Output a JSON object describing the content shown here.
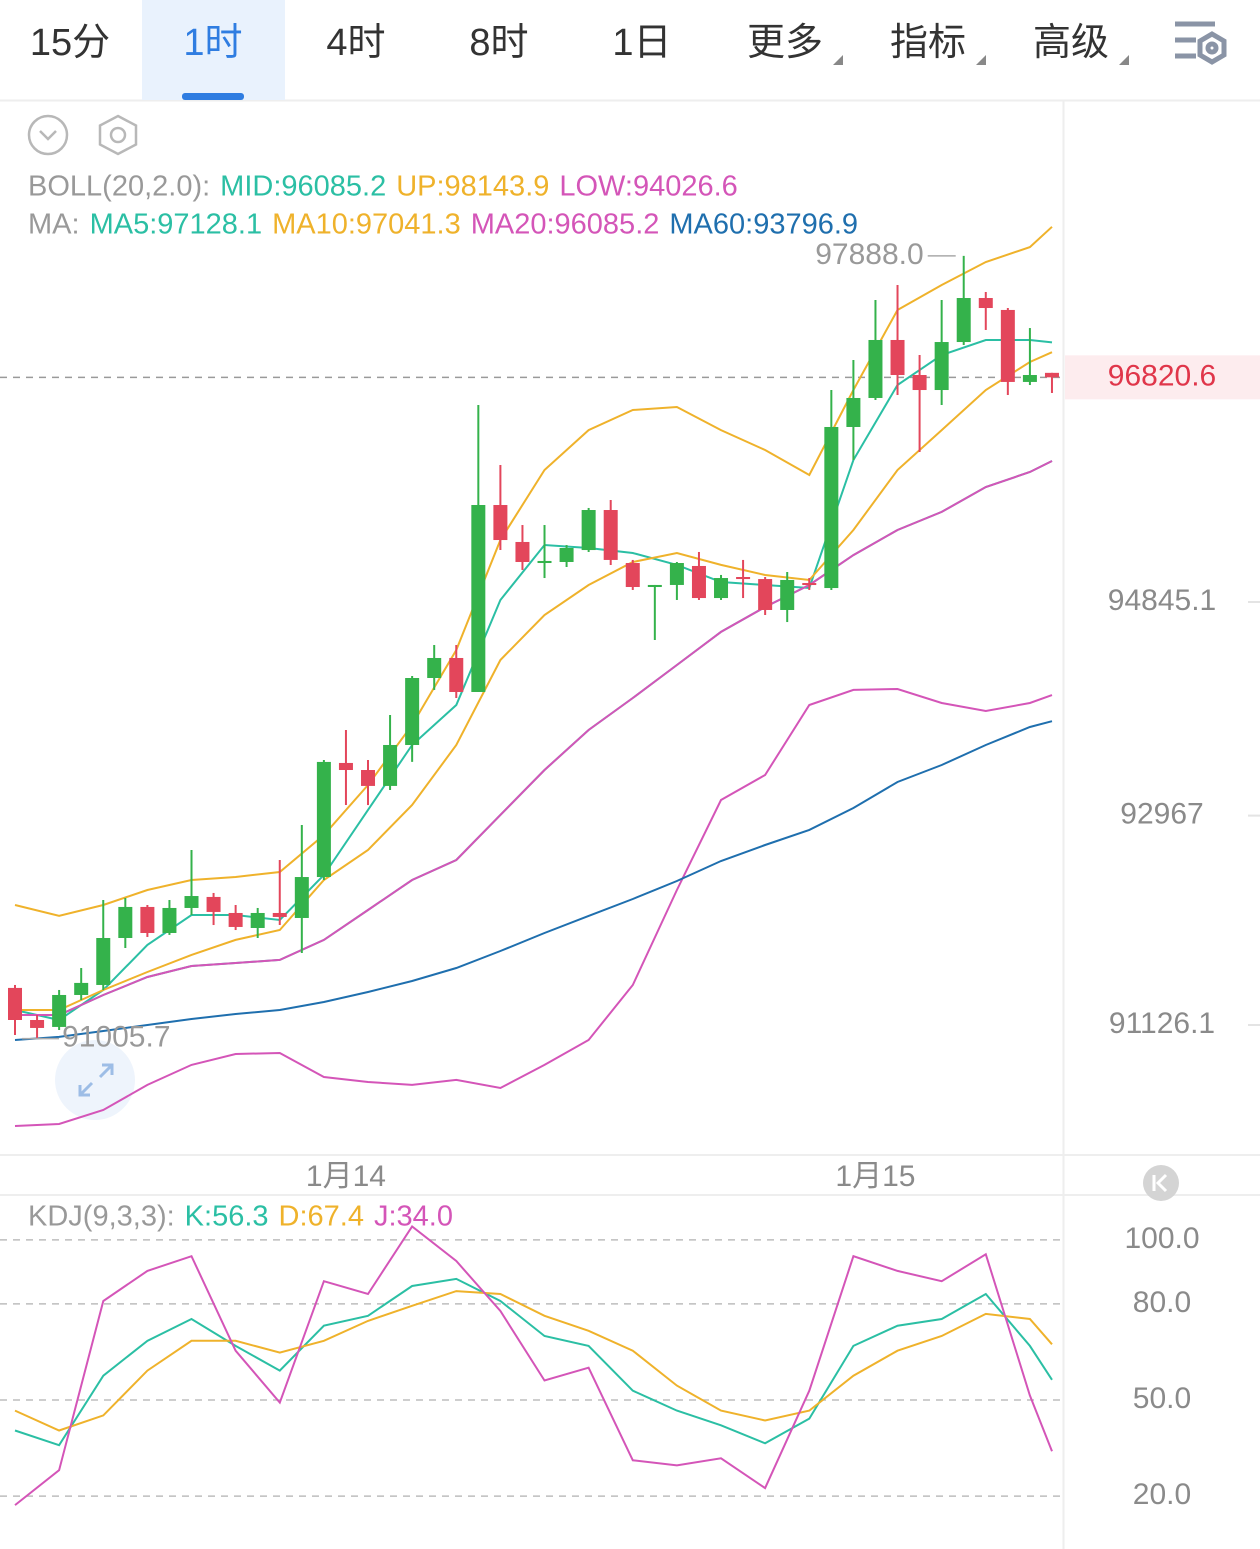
{
  "tabs": [
    {
      "label": "15分",
      "active": false,
      "dropdown": false
    },
    {
      "label": "1时",
      "active": true,
      "dropdown": false
    },
    {
      "label": "4时",
      "active": false,
      "dropdown": false
    },
    {
      "label": "8时",
      "active": false,
      "dropdown": false
    },
    {
      "label": "1日",
      "active": false,
      "dropdown": false
    },
    {
      "label": "更多",
      "active": false,
      "dropdown": true
    },
    {
      "label": "指标",
      "active": false,
      "dropdown": true
    },
    {
      "label": "高级",
      "active": false,
      "dropdown": true
    }
  ],
  "chart_data": [
    {
      "type": "candlestick",
      "categories": [
        null,
        null,
        null,
        null,
        null,
        null,
        null,
        null,
        null,
        null,
        null,
        null,
        null,
        null,
        null,
        "1月14",
        null,
        null,
        null,
        null,
        null,
        null,
        null,
        null,
        null,
        null,
        null,
        null,
        null,
        null,
        null,
        null,
        null,
        null,
        null,
        null,
        null,
        null,
        null,
        "1月15",
        null,
        null,
        null,
        null,
        null,
        null,
        null,
        null
      ],
      "open": [
        91452,
        91170,
        91109,
        91390,
        91478,
        91891,
        92164,
        91935,
        92155,
        92252,
        92111,
        91979,
        92111,
        92067,
        92427,
        93430,
        93368,
        93228,
        93588,
        94177,
        94353,
        94054,
        95698,
        95373,
        95188,
        95197,
        95302,
        95654,
        95188,
        94977,
        94995,
        95162,
        94880,
        95065,
        95047,
        94775,
        95012,
        94968,
        96384,
        96639,
        97149,
        96841,
        96709,
        97131,
        97518,
        97413,
        96780,
        96860
      ],
      "high": [
        91478,
        91214,
        91434,
        91627,
        92225,
        92243,
        92181,
        92225,
        92665,
        92287,
        92181,
        92155,
        92577,
        92885,
        93456,
        93720,
        93456,
        93852,
        94195,
        94467,
        94467,
        96577,
        96050,
        95522,
        95522,
        95346,
        95672,
        95742,
        95215,
        94995,
        95197,
        95285,
        95083,
        95215,
        95065,
        95109,
        95056,
        96709,
        96973,
        97500,
        97632,
        97017,
        97500,
        97888,
        97571,
        97430,
        97254,
        96860
      ],
      "low": [
        91038,
        91005.7,
        91082,
        91346,
        91434,
        91803,
        91900,
        91918,
        92093,
        92005,
        91961,
        91891,
        92005,
        91759,
        92401,
        93060,
        93060,
        93192,
        93439,
        94072,
        94001,
        94054,
        95302,
        95127,
        95056,
        95153,
        95285,
        95171,
        94951,
        94511,
        94863,
        94863,
        94863,
        94880,
        94731,
        94669,
        94951,
        94951,
        96094,
        96621,
        96665,
        96164,
        96577,
        97105,
        97237,
        96665,
        96753,
        96683
      ],
      "close": [
        91170,
        91100,
        91390,
        91496,
        91891,
        92164,
        91935,
        92155,
        92260,
        92120,
        91988,
        92111,
        92076,
        92427,
        93439,
        93368,
        93228,
        93588,
        94177,
        94353,
        94054,
        95698,
        95390,
        95197,
        95206,
        95320,
        95654,
        95215,
        94977,
        94995,
        95188,
        94880,
        95056,
        95047,
        94775,
        95039,
        94995,
        96384,
        96639,
        97149,
        96841,
        96709,
        97131,
        97518,
        97430,
        96780,
        96841,
        96820.6
      ],
      "up_color": "#34b24b",
      "down_color": "#e3465b",
      "xlim": [
        -0.68,
        47.5
      ],
      "ylim": [
        89983,
        99259
      ],
      "yticks": [
        94845.1,
        92967.0,
        91126.1
      ],
      "grid": false,
      "last_price": 96820.6,
      "high_marker": {
        "value": 97888,
        "label": "97888.0"
      },
      "low_marker": 91005.7,
      "line_x": [
        0,
        2,
        4,
        6,
        8,
        10,
        12,
        14,
        16,
        18,
        20,
        22,
        24,
        26,
        28,
        30,
        32,
        34,
        36,
        38,
        40,
        42,
        44,
        46,
        47
      ],
      "indicators": [
        {
          "label": "BOLL(20,2.0):",
          "series": [
            {
              "name": "MID:96085.2",
              "color": "#2bbfa4",
              "values": [
                91214,
                91214,
                91390,
                91548,
                91645,
                91671,
                91698,
                91874,
                92137,
                92401,
                92577,
                92973,
                93368,
                93720,
                94001,
                94291,
                94582,
                94801,
                94995,
                95258,
                95478,
                95637,
                95856,
                95988,
                96085.2
              ]
            },
            {
              "name": "UP:98143.9",
              "color": "#efb22b",
              "values": [
                92181,
                92085,
                92181,
                92313,
                92401,
                92427,
                92471,
                92797,
                93236,
                93764,
                94423,
                95390,
                96006,
                96357,
                96533,
                96560,
                96357,
                96182,
                95962,
                96709,
                97413,
                97632,
                97835,
                97966,
                98143.9
              ]
            },
            {
              "name": "LOW:94026.6",
              "color": "#d455b8",
              "values": [
                90238,
                90256,
                90379,
                90599,
                90775,
                90871,
                90880,
                90669,
                90625,
                90599,
                90643,
                90572,
                90775,
                90994,
                91478,
                92313,
                93104,
                93324,
                93940,
                94072,
                94080,
                93957,
                93887,
                93957,
                94026.6
              ]
            }
          ]
        },
        {
          "label": "MA:",
          "series": [
            {
              "name": "MA5:97128.1",
              "color": "#2bbfa4",
              "values": [
                91258,
                91170,
                91434,
                91830,
                92093,
                92093,
                92049,
                92445,
                93017,
                93588,
                93940,
                94863,
                95346,
                95320,
                95276,
                95171,
                95021,
                94995,
                94968,
                96094,
                96753,
                97017,
                97149,
                97149,
                97128.1
              ]
            },
            {
              "name": "MA10:97041.3",
              "color": "#efb22b",
              "values": [
                91258,
                91258,
                91434,
                91592,
                91742,
                91874,
                91961,
                92401,
                92665,
                93060,
                93588,
                94335,
                94731,
                94995,
                95197,
                95276,
                95171,
                95083,
                95039,
                95478,
                96006,
                96357,
                96709,
                96955,
                97041.3
              ]
            },
            {
              "name": "MA20:96085.2",
              "color": "#d455b8",
              "values": [
                91214,
                91214,
                91390,
                91548,
                91645,
                91671,
                91698,
                91874,
                92137,
                92401,
                92577,
                92973,
                93368,
                93720,
                94001,
                94291,
                94582,
                94801,
                94995,
                95258,
                95478,
                95637,
                95856,
                95988,
                96085.2
              ]
            },
            {
              "name": "MA60:93796.9",
              "color": "#1f6fae",
              "values": [
                90994,
                91021,
                91073,
                91126,
                91179,
                91223,
                91258,
                91328,
                91416,
                91513,
                91627,
                91777,
                91935,
                92085,
                92234,
                92392,
                92568,
                92709,
                92841,
                93034,
                93263,
                93412,
                93588,
                93746,
                93796.9
              ]
            }
          ]
        }
      ]
    },
    {
      "type": "line",
      "legend_label": "KDJ(9,3,3):",
      "xlim": [
        -0.68,
        47.5
      ],
      "ylim": [
        3.5,
        114
      ],
      "yticks": [
        {
          "value": 100,
          "label": "100.0"
        },
        {
          "value": 80,
          "label": "80.0"
        },
        {
          "value": 50,
          "label": "50.0"
        },
        {
          "value": 20,
          "label": "20.0"
        }
      ],
      "grid": true,
      "line_x": [
        0,
        2,
        4,
        6,
        8,
        10,
        12,
        14,
        16,
        18,
        20,
        22,
        24,
        26,
        28,
        30,
        32,
        34,
        36,
        38,
        40,
        42,
        44,
        46,
        47
      ],
      "series": [
        {
          "name": "K:56.3",
          "color": "#2bbfa4",
          "values": [
            40.5,
            35.9,
            57.6,
            68.5,
            75.3,
            66.9,
            59.2,
            73.2,
            76.3,
            85.6,
            87.8,
            80.9,
            70.0,
            66.9,
            52.9,
            46.7,
            42.1,
            36.5,
            44.2,
            66.9,
            73.2,
            75.3,
            83.1,
            66.9,
            56.3
          ]
        },
        {
          "name": "D:67.4",
          "color": "#efb22b",
          "values": [
            46.7,
            40.5,
            45.2,
            59.2,
            68.5,
            68.5,
            64.8,
            68.5,
            74.7,
            79.4,
            84.0,
            83.1,
            76.3,
            71.6,
            65.4,
            54.5,
            46.7,
            43.6,
            46.7,
            57.6,
            65.4,
            70.0,
            76.9,
            75.3,
            67.4
          ]
        },
        {
          "name": "J:34.0",
          "color": "#d455b8",
          "values": [
            17.2,
            28.1,
            80.9,
            90.3,
            94.9,
            65.4,
            49.2,
            87.1,
            83.1,
            104.2,
            93.4,
            77.8,
            56.1,
            60.1,
            31.2,
            29.6,
            31.8,
            22.5,
            52.9,
            94.9,
            90.3,
            87.1,
            95.5,
            51.4,
            34.0
          ]
        }
      ]
    }
  ]
}
